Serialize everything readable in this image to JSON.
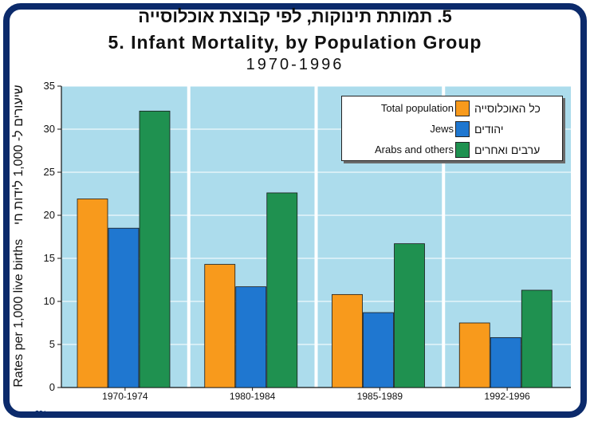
{
  "header": {
    "title_he": "5. תמותת תינוקות, לפי קבוצת אוכלוסייה",
    "title_en": "5.  Infant Mortality, by Population Group",
    "years": "1970-1996"
  },
  "axis": {
    "ylabel_en": "Rates per 1,000 live births",
    "ylabel_he": "שיעורים ל- 1,000 לידות חי"
  },
  "legend": [
    {
      "en": "Total population",
      "he": "כל האוכלוסייה",
      "color": "#f89a1c"
    },
    {
      "en": "Jews",
      "he": "יהודים",
      "color": "#1f77d0"
    },
    {
      "en": "Arabs and others",
      "he": "ערבים ואחרים",
      "color": "#1f9150"
    }
  ],
  "colors": {
    "plot_bg": "#acdcec",
    "frame": "#0b2a6b",
    "separator": "#ffffff"
  },
  "chart_data": {
    "type": "bar",
    "categories": [
      "1970-1974",
      "1980-1984",
      "1985-1989",
      "1992-1996"
    ],
    "series": [
      {
        "name": "Total population",
        "values": [
          21.9,
          14.3,
          10.8,
          7.5
        ]
      },
      {
        "name": "Jews",
        "values": [
          18.5,
          11.7,
          8.7,
          5.8
        ]
      },
      {
        "name": "Arabs and others",
        "values": [
          32.1,
          22.6,
          16.7,
          11.3
        ]
      }
    ],
    "title": "5.  Infant Mortality, by Population Group",
    "ylabel": "Rates per 1,000 live births",
    "ylim": [
      0,
      35
    ],
    "yticks": [
      0,
      5,
      10,
      15,
      20,
      25,
      30,
      35
    ],
    "grid": true,
    "legend_position": "top-right"
  }
}
